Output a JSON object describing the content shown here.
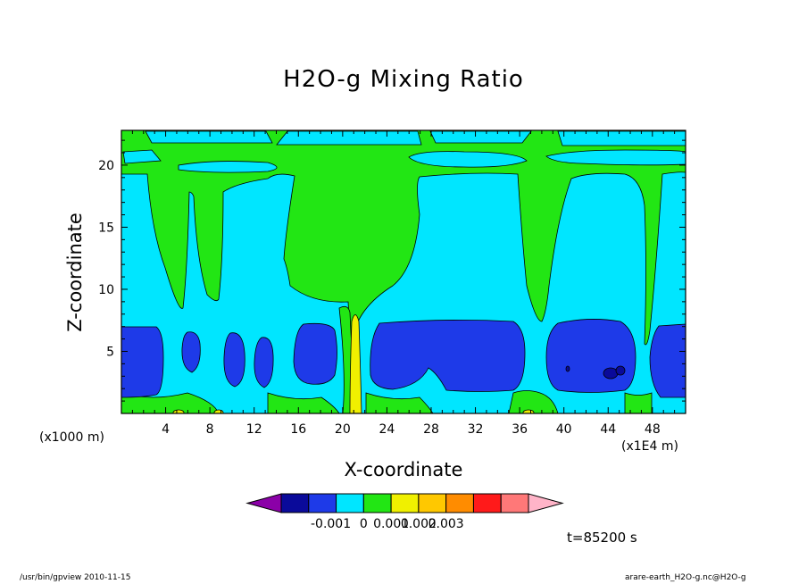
{
  "chart_data": {
    "type": "heatmap",
    "title": "H2O-g Mixing Ratio",
    "xlabel": "X-coordinate",
    "ylabel": "Z-coordinate",
    "x_unit_left": "(x1000 m)",
    "x_unit_right": "(x1E4 m)",
    "xlim": [
      0,
      51
    ],
    "ylim": [
      0,
      22.8
    ],
    "x_ticks": [
      4,
      8,
      12,
      16,
      20,
      24,
      28,
      32,
      36,
      40,
      44,
      48
    ],
    "x_tick_labels": [
      "4",
      "8",
      "12",
      "16",
      "20",
      "24",
      "28",
      "32",
      "36",
      "40",
      "44",
      "48"
    ],
    "y_ticks": [
      5,
      10,
      15,
      20
    ],
    "y_tick_labels": [
      "5",
      "10",
      "15",
      "20"
    ],
    "grid": false,
    "colorbar": {
      "orientation": "horizontal",
      "placement": "bottom",
      "colors": [
        "#8b00a8",
        "#0a0a9a",
        "#1e3ae8",
        "#00e6ff",
        "#22e614",
        "#f0f000",
        "#ffc800",
        "#ff8c00",
        "#ff1a1a",
        "#ff7878",
        "#ffb4c8"
      ],
      "tick_labels": [
        "-0.001",
        "0",
        "0.001",
        "0.002",
        "0.003"
      ]
    },
    "annotation": "t=85200 s"
  },
  "footer": {
    "left": "/usr/bin/gpview   2010-11-15",
    "right": "arare-earth_H2O-g.nc@H2O-g"
  }
}
